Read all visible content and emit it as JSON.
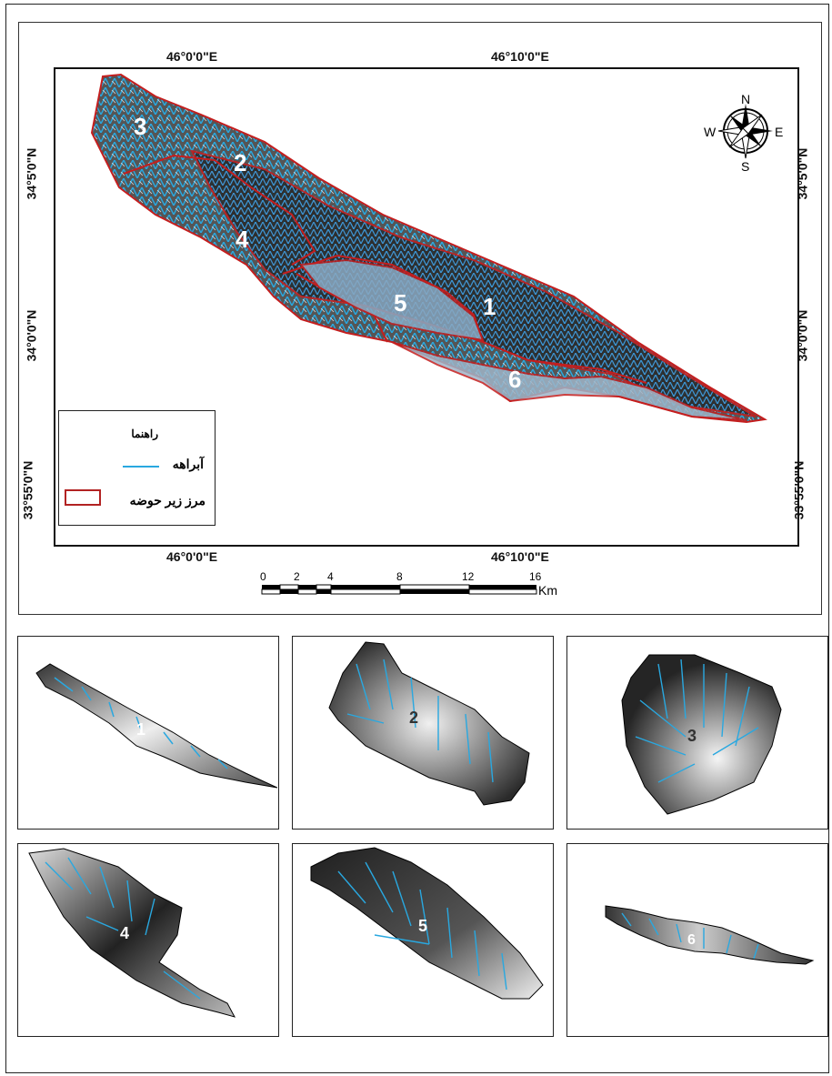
{
  "map": {
    "top_coords": [
      "46°0'0\"E",
      "46°10'0\"E"
    ],
    "bottom_coords": [
      "46°0'0\"E",
      "46°10'0\"E"
    ],
    "left_coords": [
      "34°5'0\"N",
      "34°0'0\"N",
      "33°55'0\"N"
    ],
    "right_coords": [
      "34°5'0\"N",
      "34°0'0\"N",
      "33°55'0\"N"
    ],
    "subbasin_labels": [
      "1",
      "2",
      "3",
      "4",
      "5",
      "6"
    ],
    "compass": {
      "n": "N",
      "s": "S",
      "e": "E",
      "w": "W"
    },
    "colors": {
      "stream": "#29a8e0",
      "boundary": "#b22222"
    }
  },
  "legend": {
    "title": "راهنما",
    "streams_label": "آبراهه",
    "boundary_label": "مرز زیر حوضه"
  },
  "scale": {
    "ticks": [
      "0",
      "2",
      "4",
      "8",
      "12",
      "16"
    ],
    "unit": "Km"
  },
  "panels": [
    {
      "label": "1"
    },
    {
      "label": "2"
    },
    {
      "label": "3"
    },
    {
      "label": "4"
    },
    {
      "label": "5"
    },
    {
      "label": "6"
    }
  ]
}
